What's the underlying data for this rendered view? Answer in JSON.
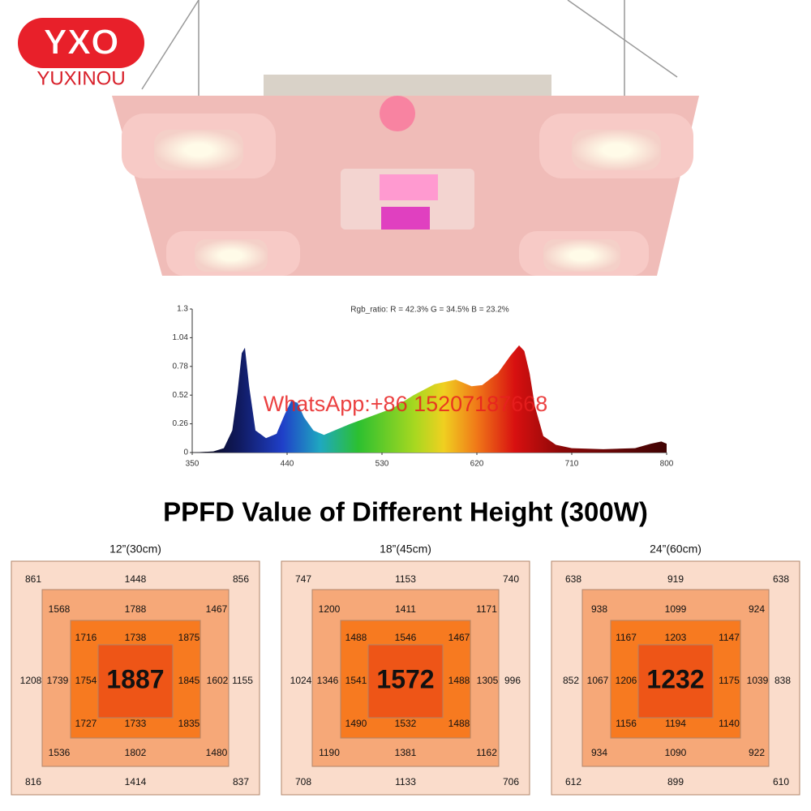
{
  "logo": {
    "mark": "YXO",
    "name": "YUXINOU"
  },
  "spectrum": {
    "title": "Rgb_ratio: R = 42.3% G = 34.5% B = 23.2%",
    "watermark": "WhatsApp:+86 15207187668",
    "x": [
      350,
      370,
      380,
      388,
      393,
      397,
      400,
      404,
      410,
      420,
      430,
      438,
      444,
      450,
      456,
      465,
      475,
      485,
      500,
      520,
      540,
      560,
      580,
      600,
      615,
      625,
      640,
      652,
      660,
      665,
      670,
      675,
      683,
      695,
      710,
      740,
      770,
      785,
      795,
      800
    ],
    "values": [
      0,
      0.01,
      0.04,
      0.2,
      0.55,
      0.9,
      0.95,
      0.6,
      0.2,
      0.13,
      0.17,
      0.35,
      0.47,
      0.45,
      0.32,
      0.2,
      0.16,
      0.2,
      0.26,
      0.33,
      0.4,
      0.52,
      0.62,
      0.66,
      0.6,
      0.61,
      0.72,
      0.88,
      0.97,
      0.92,
      0.72,
      0.42,
      0.15,
      0.07,
      0.04,
      0.03,
      0.04,
      0.08,
      0.1,
      0.08
    ],
    "xlim": [
      350,
      800
    ],
    "ylim": [
      0,
      1.3
    ],
    "xticks": [
      350,
      440,
      530,
      620,
      710,
      800
    ],
    "yticks": [
      0,
      0.26,
      0.52,
      0.78,
      1.04,
      1.3
    ]
  },
  "ppfd": {
    "title": "PPFD Value of Different Height  (300W)",
    "grids": [
      {
        "label": "12”(30cm)",
        "center": 1887,
        "rings": [
          [
            861,
            1448,
            856,
            1208,
            1155,
            816,
            1414,
            837
          ],
          [
            1568,
            1788,
            1467,
            1739,
            1602,
            1536,
            1802,
            1480
          ],
          [
            1716,
            1738,
            1875,
            1754,
            1845,
            1727,
            1733,
            1835
          ]
        ]
      },
      {
        "label": "18”(45cm)",
        "center": 1572,
        "rings": [
          [
            747,
            1153,
            740,
            1024,
            996,
            708,
            1133,
            706
          ],
          [
            1200,
            1411,
            1171,
            1346,
            1305,
            1190,
            1381,
            1162
          ],
          [
            1488,
            1546,
            1467,
            1541,
            1488,
            1490,
            1532,
            1488
          ]
        ]
      },
      {
        "label": "24”(60cm)",
        "center": 1232,
        "rings": [
          [
            638,
            919,
            638,
            852,
            838,
            612,
            899,
            610
          ],
          [
            938,
            1099,
            924,
            1067,
            1039,
            934,
            1090,
            922
          ],
          [
            1167,
            1203,
            1147,
            1206,
            1175,
            1156,
            1194,
            1140
          ]
        ]
      }
    ]
  }
}
